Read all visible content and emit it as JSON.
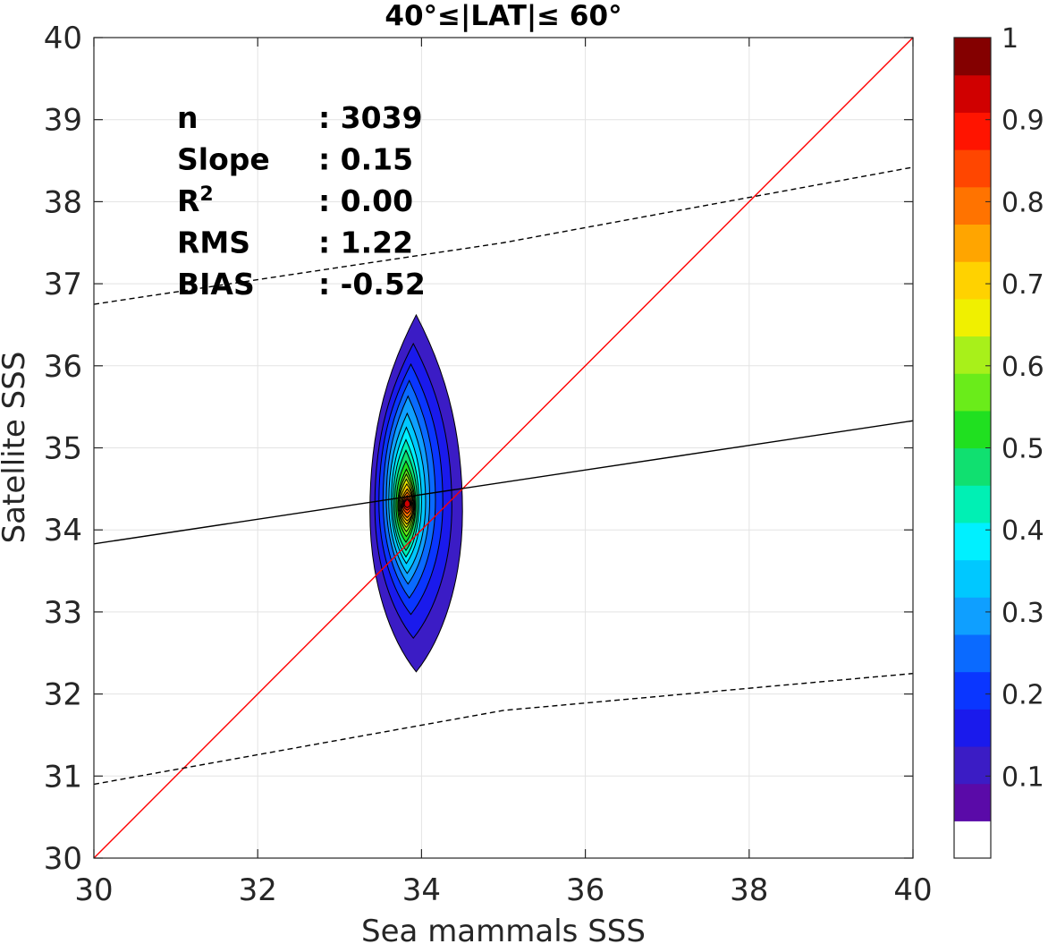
{
  "chart_data": {
    "type": "contour",
    "title": "40°≤|LAT|≤ 60°",
    "xlabel": "Sea mammals  SSS",
    "ylabel": "Satellite SSS",
    "xlim": [
      30,
      40
    ],
    "ylim": [
      30,
      40
    ],
    "x_ticks": [
      "30",
      "32",
      "34",
      "36",
      "38",
      "40"
    ],
    "y_ticks": [
      "30",
      "31",
      "32",
      "33",
      "34",
      "35",
      "36",
      "37",
      "38",
      "39",
      "40"
    ],
    "grid": true,
    "stats": [
      {
        "label": "n",
        "value": ": 3039"
      },
      {
        "label": "Slope",
        "value": ": 0.15"
      },
      {
        "label": "R",
        "sup": "2",
        "value": ": 0.00"
      },
      {
        "label": "RMS",
        "value": ": 1.22"
      },
      {
        "label": "BIAS",
        "value": ": -0.52"
      }
    ],
    "lines": [
      {
        "name": "one-to-one",
        "color": "#ff0000",
        "style": "solid",
        "points": [
          [
            30,
            30
          ],
          [
            40,
            40
          ]
        ]
      },
      {
        "name": "regression",
        "color": "#000000",
        "style": "solid",
        "points": [
          [
            30,
            33.83
          ],
          [
            40,
            35.33
          ]
        ]
      },
      {
        "name": "upper-bound",
        "color": "#000000",
        "style": "dashed",
        "points": [
          [
            30,
            36.75
          ],
          [
            35,
            37.5
          ],
          [
            40,
            38.42
          ]
        ]
      },
      {
        "name": "lower-bound",
        "color": "#000000",
        "style": "dashed",
        "points": [
          [
            30,
            30.9
          ],
          [
            35,
            31.8
          ],
          [
            40,
            32.25
          ]
        ]
      }
    ],
    "density": {
      "center": [
        33.82,
        34.35
      ],
      "levels": [
        0.05,
        0.1,
        0.15,
        0.2,
        0.25,
        0.3,
        0.35,
        0.4,
        0.45,
        0.5,
        0.55,
        0.6,
        0.65,
        0.7,
        0.75,
        0.8,
        0.85,
        0.9,
        0.95
      ],
      "contours": [
        {
          "level": 0.05,
          "x": [
            33.37,
            34.5
          ],
          "y": [
            32.27,
            36.62
          ]
        },
        {
          "level": 0.1,
          "x": [
            33.43,
            34.37
          ],
          "y": [
            32.68,
            36.27
          ]
        },
        {
          "level": 0.15,
          "x": [
            33.48,
            34.26
          ],
          "y": [
            32.97,
            36.02
          ]
        },
        {
          "level": 0.2,
          "x": [
            33.53,
            34.17
          ],
          "y": [
            33.17,
            35.82
          ]
        },
        {
          "level": 0.25,
          "x": [
            33.57,
            34.1
          ],
          "y": [
            33.34,
            35.63
          ]
        },
        {
          "level": 0.3,
          "x": [
            33.6,
            34.05
          ],
          "y": [
            33.47,
            35.42
          ]
        },
        {
          "level": 0.35,
          "x": [
            33.63,
            34.0
          ],
          "y": [
            33.59,
            35.25
          ]
        },
        {
          "level": 0.4,
          "x": [
            33.65,
            33.97
          ],
          "y": [
            33.67,
            35.1
          ]
        },
        {
          "level": 0.45,
          "x": [
            33.67,
            33.95
          ],
          "y": [
            33.75,
            34.97
          ]
        },
        {
          "level": 0.5,
          "x": [
            33.69,
            33.93
          ],
          "y": [
            33.85,
            34.84
          ]
        },
        {
          "level": 0.55,
          "x": [
            33.71,
            33.92
          ],
          "y": [
            33.92,
            34.74
          ]
        },
        {
          "level": 0.6,
          "x": [
            33.72,
            33.91
          ],
          "y": [
            33.98,
            34.68
          ]
        },
        {
          "level": 0.65,
          "x": [
            33.73,
            33.9
          ],
          "y": [
            34.03,
            34.62
          ]
        },
        {
          "level": 0.7,
          "x": [
            33.74,
            33.9
          ],
          "y": [
            34.07,
            34.56
          ]
        },
        {
          "level": 0.75,
          "x": [
            33.75,
            33.9
          ],
          "y": [
            34.11,
            34.5
          ]
        },
        {
          "level": 0.8,
          "x": [
            33.76,
            33.89
          ],
          "y": [
            34.15,
            34.46
          ]
        },
        {
          "level": 0.85,
          "x": [
            33.77,
            33.88
          ],
          "y": [
            34.2,
            34.42
          ]
        },
        {
          "level": 0.9,
          "x": [
            33.78,
            33.87
          ],
          "y": [
            34.24,
            34.39
          ]
        },
        {
          "level": 0.95,
          "x": [
            33.79,
            33.86
          ],
          "y": [
            34.27,
            34.37
          ]
        }
      ]
    },
    "colorbar": {
      "range": [
        0,
        1
      ],
      "tick_values": [
        0.1,
        0.2,
        0.3,
        0.4,
        0.5,
        0.6,
        0.7,
        0.8,
        0.9,
        1
      ],
      "tick_labels": [
        "0.1",
        "0.2",
        "0.3",
        "0.4",
        "0.5",
        "0.6",
        "0.7",
        "0.8",
        "0.9",
        "1"
      ],
      "colors": [
        "#ffffff",
        "#5a0aa8",
        "#3b1cc5",
        "#1a1aec",
        "#0a36ff",
        "#0a6aff",
        "#0f9fff",
        "#00c8ff",
        "#00f0ff",
        "#00f0b4",
        "#10e070",
        "#20e020",
        "#6aec1a",
        "#a8f01a",
        "#f0f000",
        "#ffd200",
        "#ffa500",
        "#ff7300",
        "#ff4600",
        "#ff1400",
        "#d00000",
        "#840000"
      ]
    }
  }
}
